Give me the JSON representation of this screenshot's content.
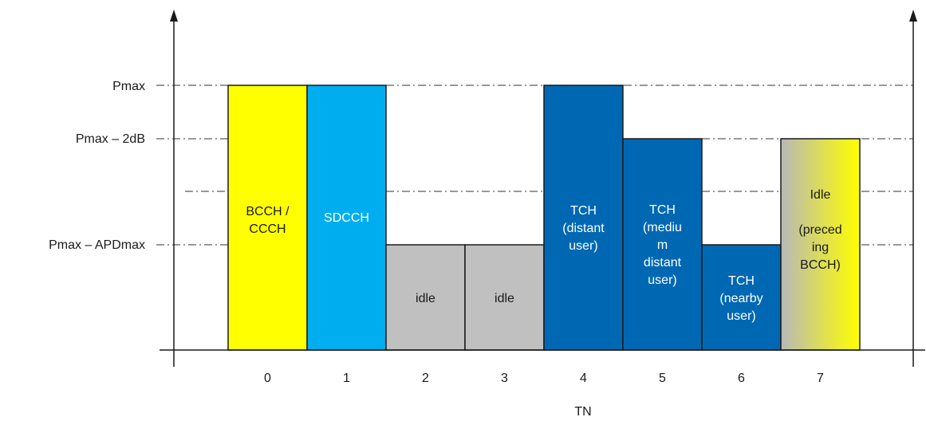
{
  "y_levels": [
    {
      "id": "pmax",
      "label": "Pmax"
    },
    {
      "id": "pmax_2db",
      "label": "Pmax – 2dB"
    },
    {
      "id": "mid",
      "label": ""
    },
    {
      "id": "pmax_apd",
      "label": "Pmax – APDmax"
    }
  ],
  "x_axis_title": "TN",
  "timeslots": [
    {
      "tn": "0",
      "level": "pmax",
      "lines": [
        "BCCH /",
        "CCCH"
      ],
      "fill": "#ffff00",
      "text_color": "#1a1a1a"
    },
    {
      "tn": "1",
      "level": "pmax",
      "lines": [
        "SDCCH"
      ],
      "fill": "#00aeef",
      "text_color": "#ffffff"
    },
    {
      "tn": "2",
      "level": "pmax_apd",
      "lines": [
        "idle"
      ],
      "fill": "#c0c0c0",
      "text_color": "#1a1a1a"
    },
    {
      "tn": "3",
      "level": "pmax_apd",
      "lines": [
        "idle"
      ],
      "fill": "#c0c0c0",
      "text_color": "#1a1a1a"
    },
    {
      "tn": "4",
      "level": "pmax",
      "lines": [
        "TCH",
        "(distant",
        "user)"
      ],
      "fill": "#0068b3",
      "text_color": "#ffffff"
    },
    {
      "tn": "5",
      "level": "pmax_2db",
      "lines": [
        "TCH",
        "(mediu",
        "m",
        "distant",
        "user)"
      ],
      "fill": "#0068b3",
      "text_color": "#ffffff"
    },
    {
      "tn": "6",
      "level": "pmax_apd",
      "lines": [
        "TCH",
        "(nearby",
        "user)"
      ],
      "fill": "#0068b3",
      "text_color": "#ffffff"
    },
    {
      "tn": "7",
      "level": "pmax_2db",
      "lines": [
        "Idle",
        "",
        "(preced",
        "ing",
        "BCCH)"
      ],
      "fill": "gradient:#b8b8b8-#ffff00",
      "text_color": "#1a1a1a"
    }
  ],
  "colors": {
    "axis": "#1a1a1a",
    "dashed_line": "#333333",
    "gradient_start": "#b8b8b8",
    "gradient_end": "#ffff00"
  }
}
